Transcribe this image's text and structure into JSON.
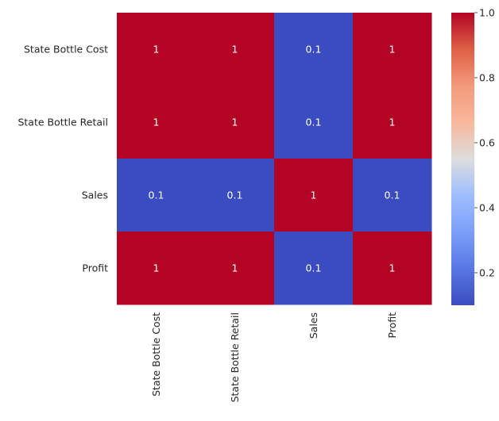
{
  "chart_data": {
    "type": "heatmap",
    "rows": [
      "State Bottle Cost",
      "State Bottle Retail",
      "Sales",
      "Profit"
    ],
    "columns": [
      "State Bottle Cost",
      "State Bottle Retail",
      "Sales",
      "Profit"
    ],
    "values": [
      [
        1.0,
        1.0,
        0.1,
        1.0
      ],
      [
        1.0,
        1.0,
        0.1,
        1.0
      ],
      [
        0.1,
        0.1,
        1.0,
        0.1
      ],
      [
        1.0,
        1.0,
        0.1,
        1.0
      ]
    ],
    "annotations": [
      [
        "1",
        "1",
        "0.1",
        "1"
      ],
      [
        "1",
        "1",
        "0.1",
        "1"
      ],
      [
        "0.1",
        "0.1",
        "1",
        "0.1"
      ],
      [
        "1",
        "1",
        "0.1",
        "1"
      ]
    ],
    "colormap": "coolwarm",
    "colorbar": {
      "range": [
        0.1,
        1.0
      ],
      "ticks": [
        0.2,
        0.4,
        0.6,
        0.8,
        1.0
      ],
      "tick_labels": [
        "0.2",
        "0.4",
        "0.6",
        "0.8",
        "1.0"
      ]
    },
    "colors": {
      "low": "#3b4cc0",
      "mid": "#dddddd",
      "high": "#b40426"
    }
  }
}
